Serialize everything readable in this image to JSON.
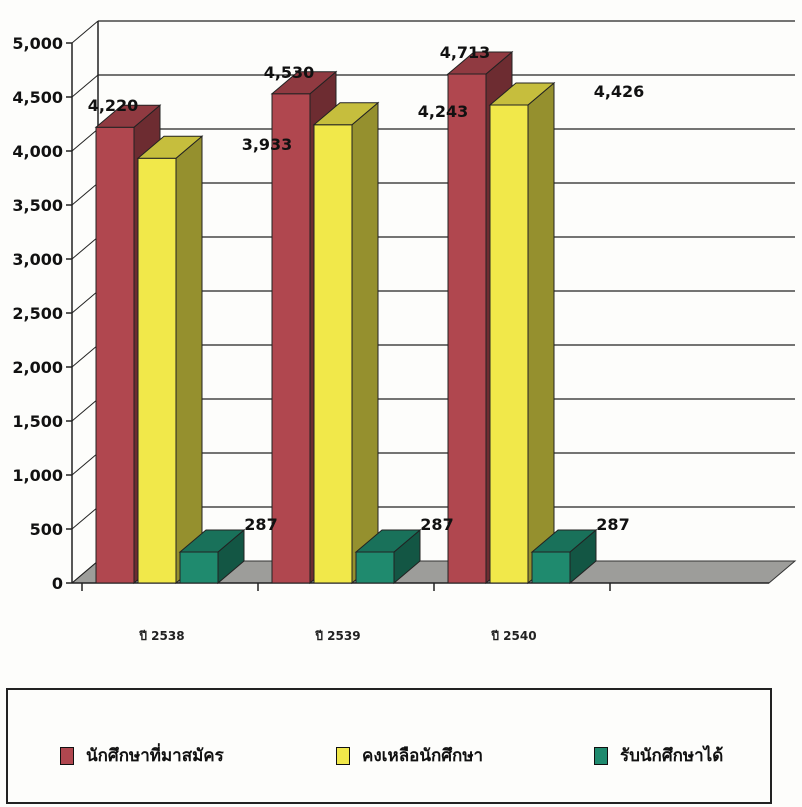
{
  "chart_data": {
    "type": "bar",
    "categories": [
      "ปี 2538",
      "ปี 2539",
      "ปี 2540"
    ],
    "series": [
      {
        "name": "นักศึกษาที่มาสมัคร",
        "values": [
          4220,
          4530,
          4713
        ],
        "color": "#b0474f"
      },
      {
        "name": "คงเหลือนักศึกษา",
        "values": [
          3933,
          4243,
          4426
        ],
        "color": "#f1e84a"
      },
      {
        "name": "รับนักศึกษาได้",
        "values": [
          287,
          287,
          287
        ],
        "color": "#1f8a6e"
      }
    ],
    "data_labels": [
      [
        "4,220",
        "4,530",
        "4,713"
      ],
      [
        "3,933",
        "4,243",
        "4,426"
      ],
      [
        "287",
        "287",
        "287"
      ]
    ],
    "y_ticks": [
      "0",
      "500",
      "1,000",
      "1,500",
      "2,000",
      "2,500",
      "3,000",
      "3,500",
      "4,000",
      "4,500",
      "5,000"
    ],
    "ylim": [
      0,
      5000
    ],
    "grid": true,
    "style": "3d-column",
    "legend_position": "bottom"
  }
}
